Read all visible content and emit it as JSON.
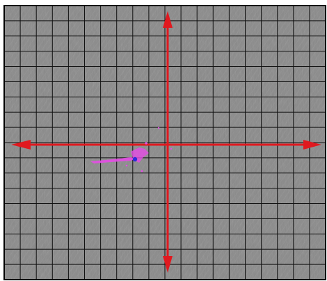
{
  "target_view": {
    "grid": {
      "columns": 20,
      "rows": 18
    },
    "colors": {
      "panel_background": "#8a8a8a",
      "grid_lines": "#111111",
      "crosshair": "#e0191f",
      "trace": "#e64ce6",
      "marker": "#2c2cd8",
      "frame": "#000000"
    },
    "crosshair_arrows": [
      "arrow-up-icon",
      "arrow-down-icon",
      "arrow-left-icon",
      "arrow-right-icon"
    ],
    "marker": {
      "shape": "dot",
      "icon": "position-dot-icon"
    }
  }
}
